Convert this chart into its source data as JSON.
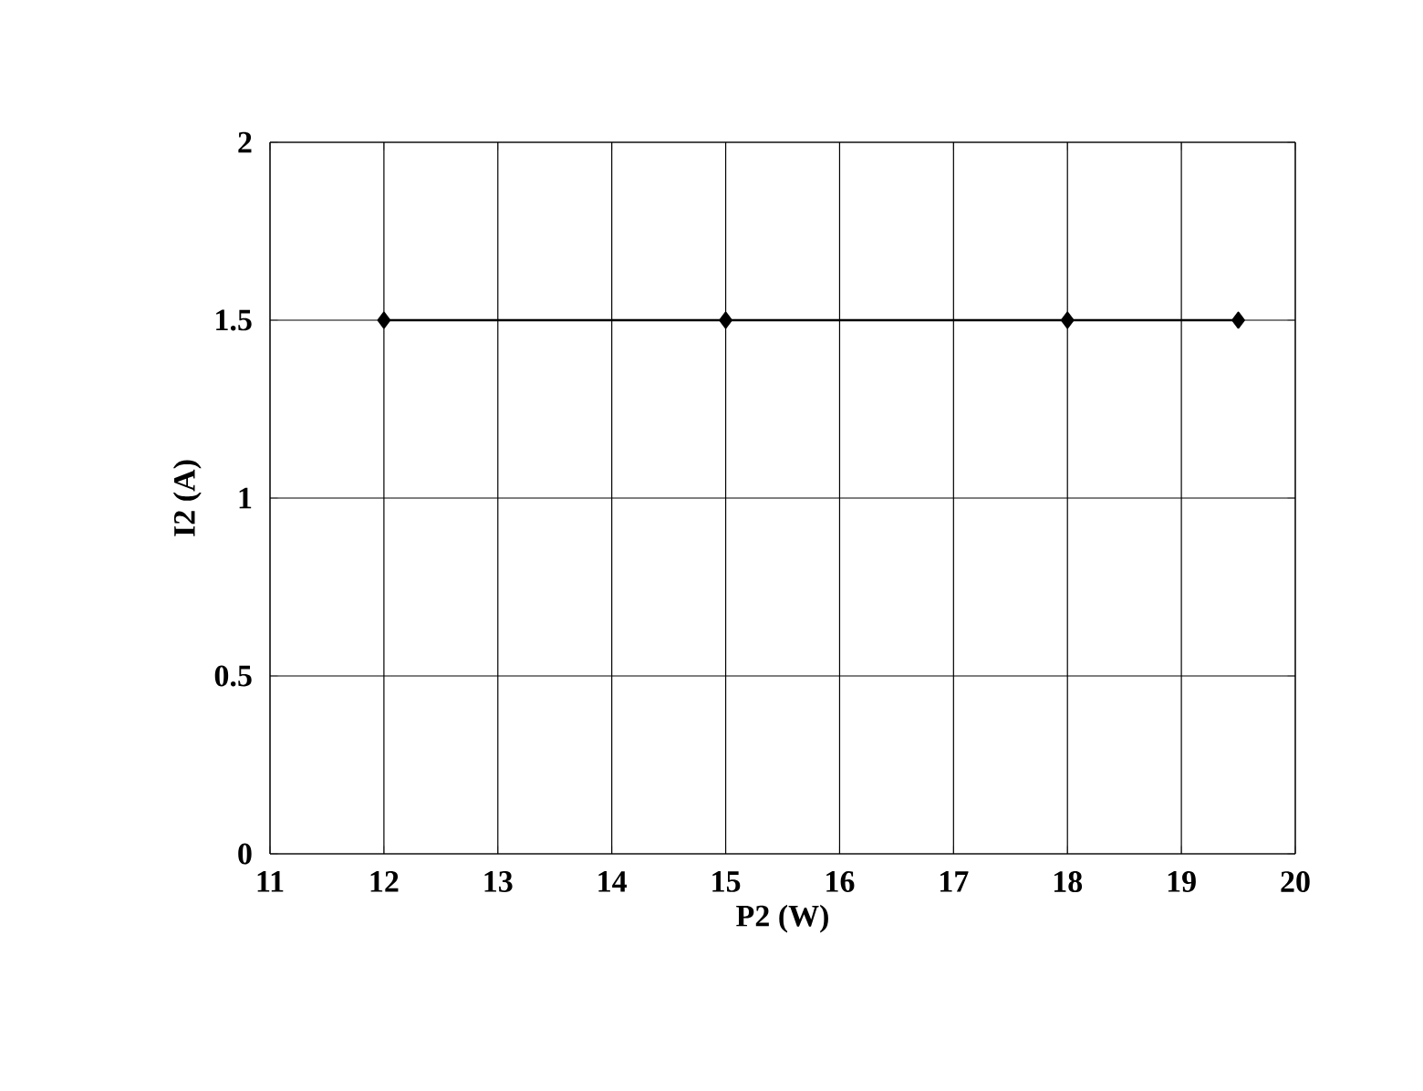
{
  "chart_data": {
    "type": "line",
    "xlabel": "P2 (W)",
    "ylabel": "I2 (A)",
    "x": [
      12,
      15,
      18,
      19.5
    ],
    "values": [
      1.5,
      1.5,
      1.5,
      1.5
    ],
    "color": "#000000",
    "xlim": [
      11,
      20
    ],
    "xticks": [
      11,
      12,
      13,
      14,
      15,
      16,
      17,
      18,
      19,
      20
    ],
    "ylim": [
      0,
      2
    ],
    "yticks": [
      0,
      0.5,
      1,
      1.5,
      2
    ],
    "grid": true,
    "marker": "diamond",
    "line_style": "solid"
  }
}
